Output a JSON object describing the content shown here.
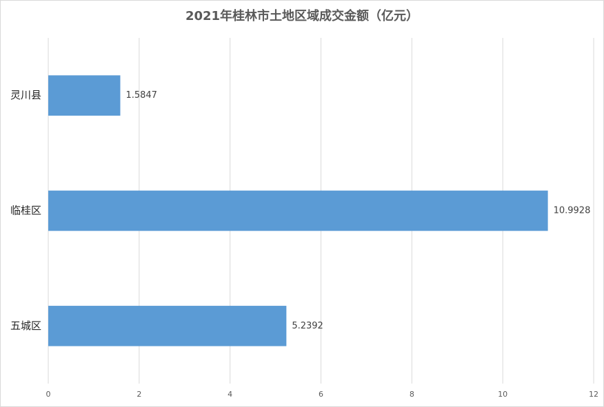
{
  "chart_data": {
    "type": "bar",
    "orientation": "horizontal",
    "title": "2021年桂林市土地区域成交金额（亿元）",
    "categories": [
      "灵川县",
      "临桂区",
      "五城区"
    ],
    "values": [
      1.5847,
      10.9928,
      5.2392
    ],
    "color": "#5b9bd5",
    "xlim": [
      0,
      12
    ],
    "xticks": [
      0,
      2,
      4,
      6,
      8,
      10,
      12
    ],
    "grid": true
  }
}
